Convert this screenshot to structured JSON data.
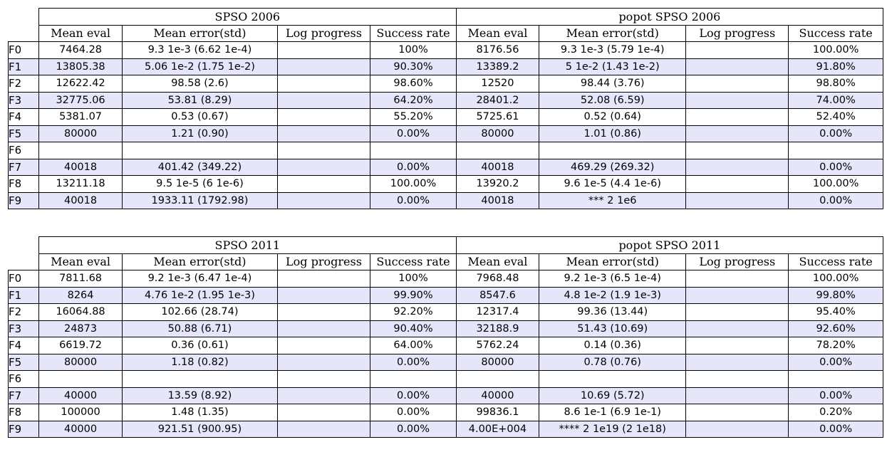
{
  "tables": [
    {
      "groups": [
        "SPSO 2006",
        "popot SPSO 2006"
      ],
      "columns": [
        "Mean eval",
        "Mean error(std)",
        "Log progress",
        "Success rate",
        "Mean eval",
        "Mean error(std)",
        "Log progress",
        "Success rate"
      ],
      "rows": [
        {
          "label": "F0",
          "cells": [
            "7464.28",
            "9.3 1e-3 (6.62 1e-4)",
            "",
            "100%",
            "8176.56",
            "9.3 1e-3 (5.79 1e-4)",
            "",
            "100.00%"
          ]
        },
        {
          "label": "F1",
          "cells": [
            "13805.38",
            "5.06 1e-2 (1.75 1e-2)",
            "",
            "90.30%",
            "13389.2",
            "5 1e-2 (1.43 1e-2)",
            "",
            "91.80%"
          ]
        },
        {
          "label": "F2",
          "cells": [
            "12622.42",
            "98.58 (2.6)",
            "",
            "98.60%",
            "12520",
            "98.44 (3.76)",
            "",
            "98.80%"
          ]
        },
        {
          "label": "F3",
          "cells": [
            "32775.06",
            "53.81 (8.29)",
            "",
            "64.20%",
            "28401.2",
            "52.08 (6.59)",
            "",
            "74.00%"
          ]
        },
        {
          "label": "F4",
          "cells": [
            "5381.07",
            "0.53 (0.67)",
            "",
            "55.20%",
            "5725.61",
            "0.52 (0.64)",
            "",
            "52.40%"
          ]
        },
        {
          "label": "F5",
          "cells": [
            "80000",
            "1.21 (0.90)",
            "",
            "0.00%",
            "80000",
            "1.01 (0.86)",
            "",
            "0.00%"
          ]
        },
        {
          "label": "F6",
          "cells": [
            "",
            "",
            "",
            "",
            "",
            "",
            "",
            ""
          ]
        },
        {
          "label": "F7",
          "cells": [
            "40018",
            "401.42 (349.22)",
            "",
            "0.00%",
            "40018",
            "469.29 (269.32)",
            "",
            "0.00%"
          ]
        },
        {
          "label": "F8",
          "cells": [
            "13211.18",
            "9.5 1e-5 (6 1e-6)",
            "",
            "100.00%",
            "13920.2",
            "9.6 1e-5 (4.4 1e-6)",
            "",
            "100.00%"
          ]
        },
        {
          "label": "F9",
          "cells": [
            "40018",
            "1933.11 (1792.98)",
            "",
            "0.00%",
            "40018",
            "*** 2 1e6",
            "",
            "0.00%"
          ]
        }
      ]
    },
    {
      "groups": [
        "SPSO 2011",
        "popot SPSO 2011"
      ],
      "columns": [
        "Mean eval",
        "Mean error(std)",
        "Log progress",
        "Success rate",
        "Mean eval",
        "Mean error(std)",
        "Log progress",
        "Success rate"
      ],
      "rows": [
        {
          "label": "F0",
          "cells": [
            "7811.68",
            "9.2 1e-3 (6.47 1e-4)",
            "",
            "100%",
            "7968.48",
            "9.2 1e-3 (6.5 1e-4)",
            "",
            "100.00%"
          ]
        },
        {
          "label": "F1",
          "cells": [
            "8264",
            "4.76 1e-2 (1.95 1e-3)",
            "",
            "99.90%",
            "8547.6",
            "4.8 1e-2 (1.9 1e-3)",
            "",
            "99.80%"
          ]
        },
        {
          "label": "F2",
          "cells": [
            "16064.88",
            "102.66 (28.74)",
            "",
            "92.20%",
            "12317.4",
            "99.36 (13.44)",
            "",
            "95.40%"
          ]
        },
        {
          "label": "F3",
          "cells": [
            "24873",
            "50.88 (6.71)",
            "",
            "90.40%",
            "32188.9",
            "51.43 (10.69)",
            "",
            "92.60%"
          ]
        },
        {
          "label": "F4",
          "cells": [
            "6619.72",
            "0.36 (0.61)",
            "",
            "64.00%",
            "5762.24",
            "0.14 (0.36)",
            "",
            "78.20%"
          ]
        },
        {
          "label": "F5",
          "cells": [
            "80000",
            "1.18 (0.82)",
            "",
            "0.00%",
            "80000",
            "0.78 (0.76)",
            "",
            "0.00%"
          ]
        },
        {
          "label": "F6",
          "cells": [
            "",
            "",
            "",
            "",
            "",
            "",
            "",
            ""
          ]
        },
        {
          "label": "F7",
          "cells": [
            "40000",
            "13.59 (8.92)",
            "",
            "0.00%",
            "40000",
            "10.69 (5.72)",
            "",
            "0.00%"
          ]
        },
        {
          "label": "F8",
          "cells": [
            "100000",
            "1.48 (1.35)",
            "",
            "0.00%",
            "99836.1",
            "8.6 1e-1 (6.9 1e-1)",
            "",
            "0.20%"
          ]
        },
        {
          "label": "F9",
          "cells": [
            "40000",
            "921.51 (900.95)",
            "",
            "0.00%",
            "4.00E+004",
            "**** 2 1e19 (2 1e18)",
            "",
            "0.00%"
          ]
        }
      ]
    }
  ],
  "colors": {
    "row_shade": "#e6e6fa",
    "border": "#000000"
  }
}
